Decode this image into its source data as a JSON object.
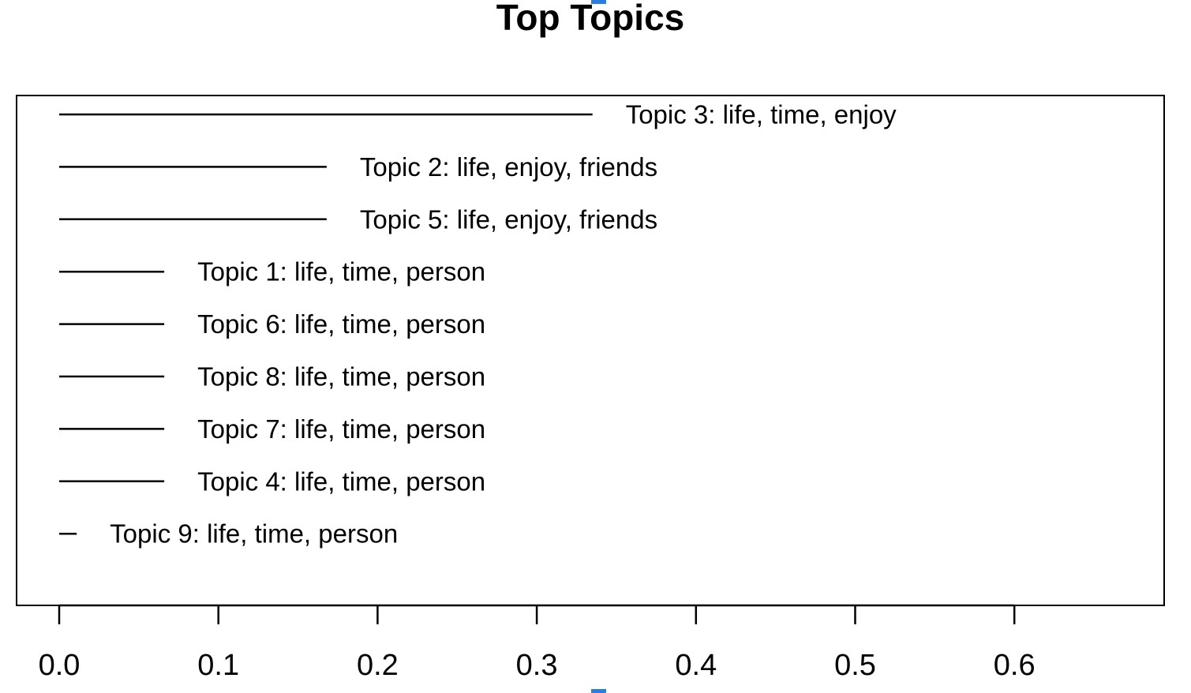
{
  "chart_data": {
    "type": "bar",
    "orientation": "horizontal",
    "title": "Top Topics",
    "xlabel": "",
    "ylabel": "",
    "xlim": [
      0,
      0.7
    ],
    "xticks": [
      0.0,
      0.1,
      0.2,
      0.3,
      0.4,
      0.5,
      0.6
    ],
    "xtick_labels": [
      "0.0",
      "0.1",
      "0.2",
      "0.3",
      "0.4",
      "0.5",
      "0.6"
    ],
    "grid": false,
    "legend": "none",
    "categories": [
      "Topic 3: life, time, enjoy",
      "Topic 2: life, enjoy, friends",
      "Topic 5: life, enjoy, friends",
      "Topic 1: life, time, person",
      "Topic 6: life, time, person",
      "Topic 8: life, time, person",
      "Topic 7: life, time, person",
      "Topic 4: life, time, person",
      "Topic 9: life, time, person"
    ],
    "values": [
      0.335,
      0.168,
      0.168,
      0.066,
      0.066,
      0.066,
      0.066,
      0.066,
      0.011
    ],
    "colors": {
      "bar": "#000000",
      "text": "#000000",
      "marker": "#2a7de1"
    }
  }
}
